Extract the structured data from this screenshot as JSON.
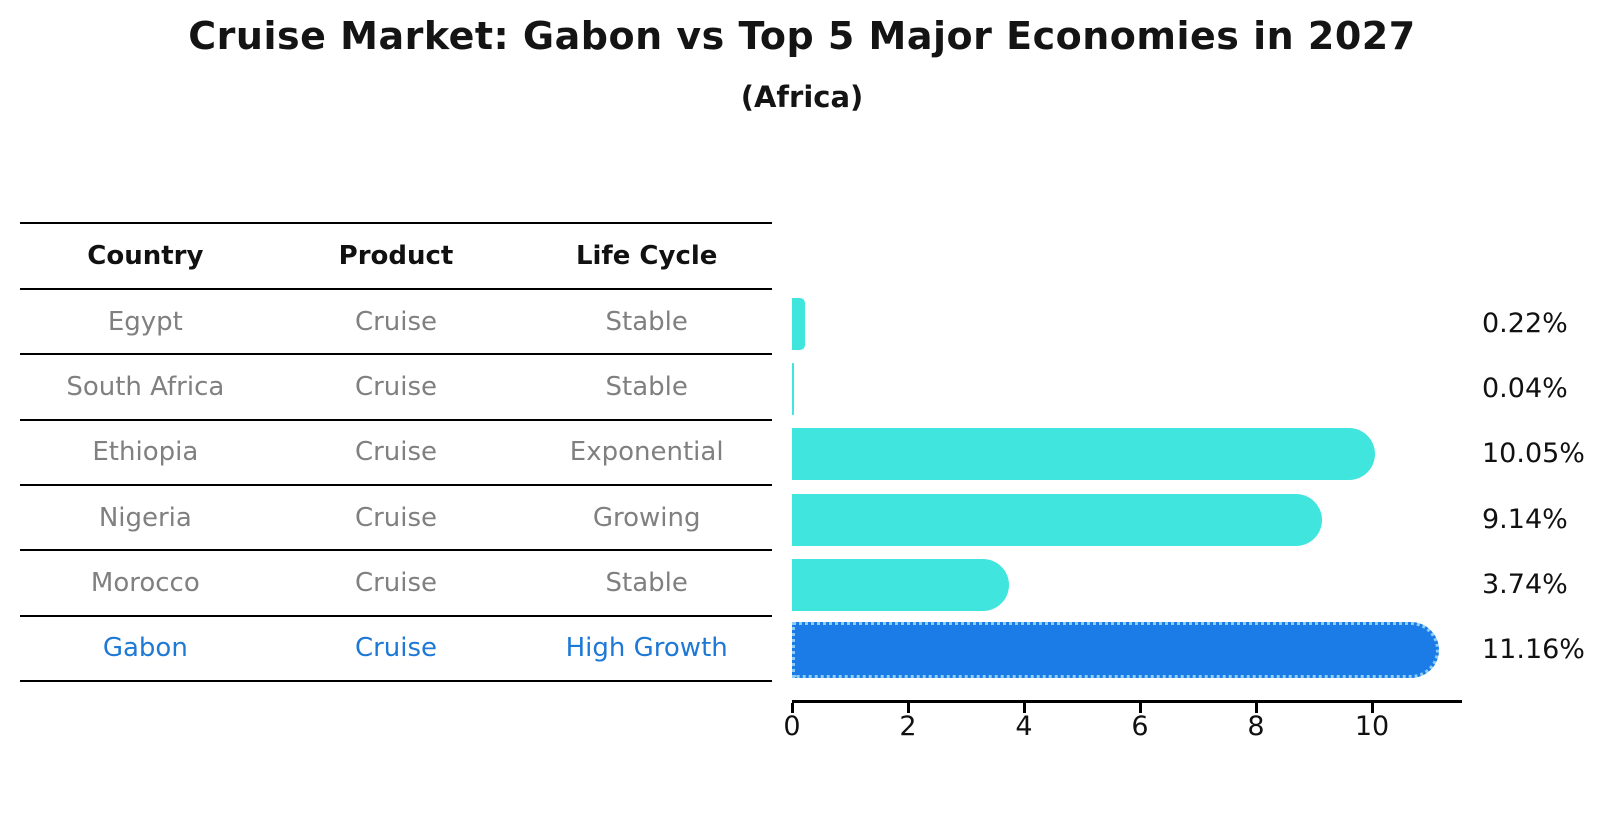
{
  "title": "Cruise Market: Gabon vs Top 5 Major Economies in 2027",
  "subtitle": "(Africa)",
  "table": {
    "headers": [
      "Country",
      "Product",
      "Life Cycle"
    ],
    "rows": [
      {
        "country": "Egypt",
        "product": "Cruise",
        "life_cycle": "Stable"
      },
      {
        "country": "South Africa",
        "product": "Cruise",
        "life_cycle": "Stable"
      },
      {
        "country": "Ethiopia",
        "product": "Cruise",
        "life_cycle": "Exponential"
      },
      {
        "country": "Nigeria",
        "product": "Cruise",
        "life_cycle": "Growing"
      },
      {
        "country": "Morocco",
        "product": "Cruise",
        "life_cycle": "Stable"
      },
      {
        "country": "Gabon",
        "product": "Cruise",
        "life_cycle": "High Growth"
      }
    ]
  },
  "chart_data": {
    "type": "bar",
    "orientation": "horizontal",
    "title": "Cruise Market: Gabon vs Top 5 Major Economies in 2027",
    "subtitle": "(Africa)",
    "categories": [
      "Egypt",
      "South Africa",
      "Ethiopia",
      "Nigeria",
      "Morocco",
      "Gabon"
    ],
    "values": [
      0.22,
      0.04,
      10.05,
      9.14,
      3.74,
      11.16
    ],
    "value_labels": [
      "0.22%",
      "0.04%",
      "10.05%",
      "9.14%",
      "3.74%",
      "11.16%"
    ],
    "x_ticks": [
      0,
      2,
      4,
      6,
      8,
      10
    ],
    "x_tick_labels": [
      "0",
      "2",
      "4",
      "6",
      "8",
      "10"
    ],
    "xlabel": "",
    "ylabel": "",
    "xlim": [
      0,
      11.55
    ],
    "grid": false,
    "legend": "none",
    "highlight_index": 5
  },
  "colors": {
    "bar_default": "#40e5dd",
    "bar_highlight": "#1b7ce8",
    "bar_highlight_edge": "#8ecdf6",
    "highlight_text": "#1e79d6",
    "row_text": "#808080",
    "axis": "#000000"
  }
}
